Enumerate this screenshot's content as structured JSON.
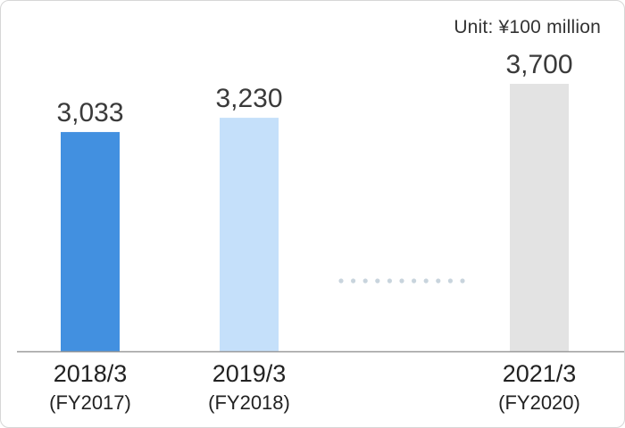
{
  "chart_data": {
    "type": "bar",
    "unit": "Unit: ¥100 million",
    "categories": [
      "2018/3",
      "2019/3",
      "2021/3"
    ],
    "sublabels": [
      "(FY2017)",
      "(FY2018)",
      "(FY2020)"
    ],
    "values": [
      3033,
      3230,
      3700
    ],
    "value_labels": [
      "3,033",
      "3,230",
      "3,700"
    ],
    "colors": [
      "#4290e0",
      "#c5e0fa",
      "#e3e3e3"
    ],
    "axis_color": "#9a9a9a",
    "gap_indicator_color": "#c8d4dd",
    "gap_after_index": 1,
    "grid": false,
    "legend": "none"
  }
}
